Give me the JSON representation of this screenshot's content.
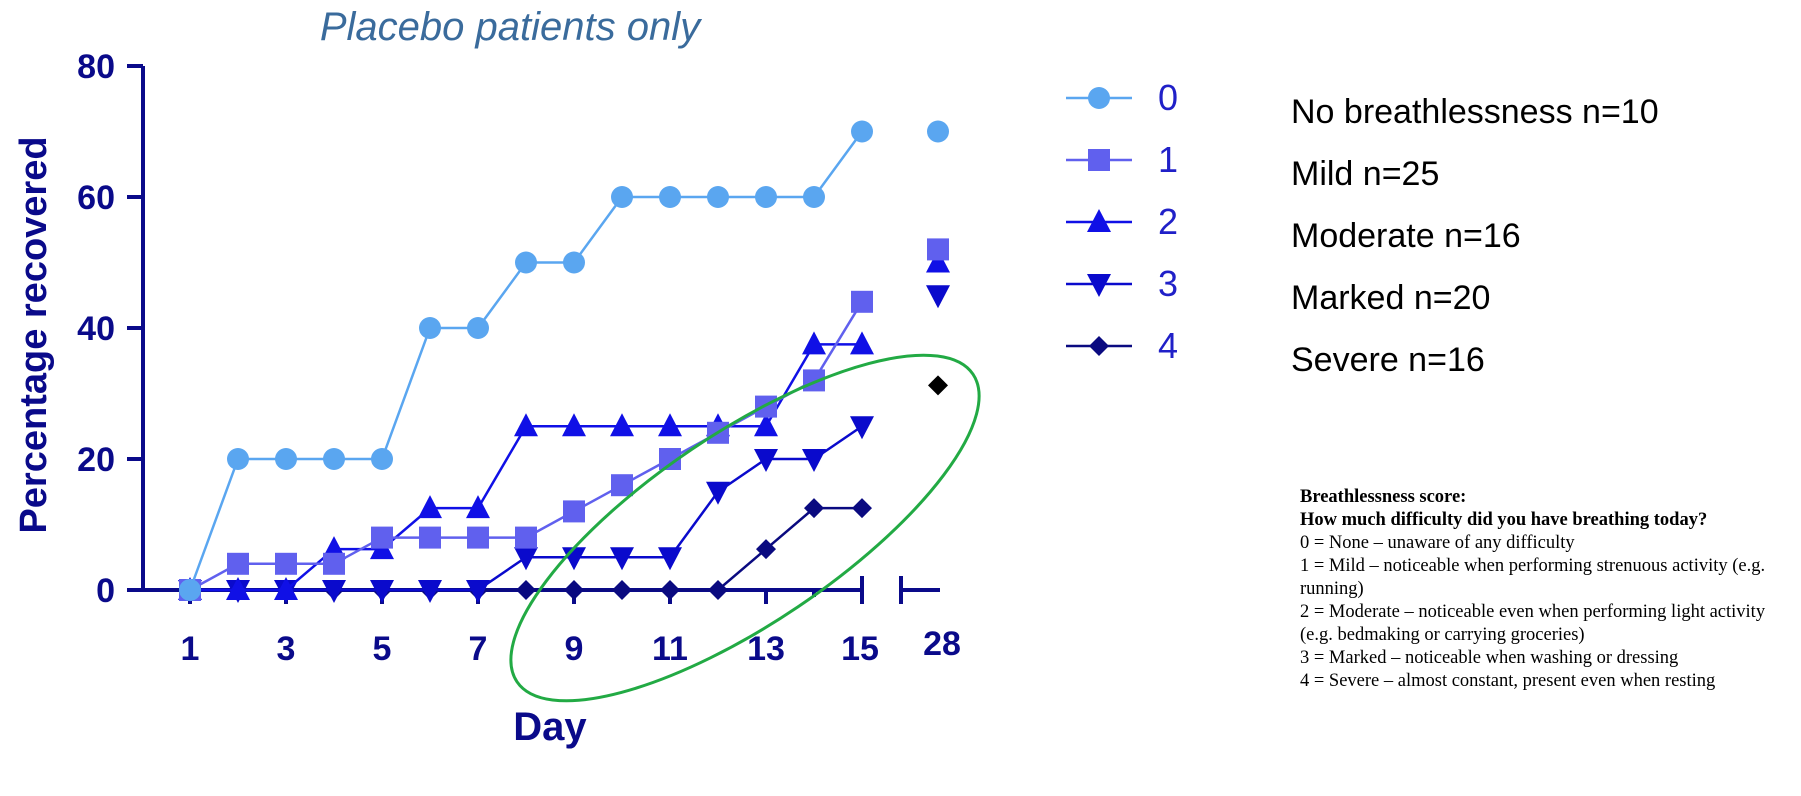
{
  "chart_data": {
    "type": "line",
    "title": "Placebo patients only",
    "xlabel": "Day",
    "ylabel": "Percentage recovered",
    "ylim": [
      0,
      80
    ],
    "yticks": [
      0,
      20,
      40,
      60,
      80
    ],
    "xticks": [
      1,
      3,
      5,
      7,
      9,
      11,
      13,
      15,
      28
    ],
    "x_axis_break": "between 15 and 28",
    "grid": false,
    "legend_position": "right",
    "series": [
      {
        "name": "0",
        "label": "No breathlessness n=10",
        "color": "#5aa6f0",
        "marker": "circle",
        "points": [
          [
            1,
            0
          ],
          [
            2,
            20
          ],
          [
            3,
            20
          ],
          [
            4,
            20
          ],
          [
            5,
            20
          ],
          [
            6,
            40
          ],
          [
            7,
            40
          ],
          [
            8,
            50
          ],
          [
            9,
            50
          ],
          [
            10,
            60
          ],
          [
            11,
            60
          ],
          [
            12,
            60
          ],
          [
            13,
            60
          ],
          [
            14,
            60
          ],
          [
            15,
            70
          ],
          [
            28,
            70
          ]
        ]
      },
      {
        "name": "1",
        "label": "Mild n=25",
        "color": "#6060ee",
        "marker": "square",
        "points": [
          [
            1,
            0
          ],
          [
            2,
            4
          ],
          [
            3,
            4
          ],
          [
            4,
            4
          ],
          [
            5,
            8
          ],
          [
            6,
            8
          ],
          [
            7,
            8
          ],
          [
            8,
            8
          ],
          [
            9,
            12
          ],
          [
            10,
            16
          ],
          [
            11,
            20
          ],
          [
            12,
            24
          ],
          [
            13,
            28
          ],
          [
            14,
            32
          ],
          [
            15,
            44
          ],
          [
            28,
            52
          ]
        ]
      },
      {
        "name": "2",
        "label": "Moderate n=16",
        "color": "#1010e6",
        "marker": "triangle-up",
        "points": [
          [
            1,
            0
          ],
          [
            2,
            0
          ],
          [
            3,
            0
          ],
          [
            4,
            6.25
          ],
          [
            5,
            6.25
          ],
          [
            6,
            12.5
          ],
          [
            7,
            12.5
          ],
          [
            8,
            25
          ],
          [
            9,
            25
          ],
          [
            10,
            25
          ],
          [
            11,
            25
          ],
          [
            12,
            25
          ],
          [
            13,
            25
          ],
          [
            14,
            37.5
          ],
          [
            15,
            37.5
          ],
          [
            28,
            50
          ]
        ]
      },
      {
        "name": "3",
        "label": "Marked n=20",
        "color": "#0a0acc",
        "marker": "triangle-down",
        "points": [
          [
            1,
            0
          ],
          [
            2,
            0
          ],
          [
            3,
            0
          ],
          [
            4,
            0
          ],
          [
            5,
            0
          ],
          [
            6,
            0
          ],
          [
            7,
            0
          ],
          [
            8,
            5
          ],
          [
            9,
            5
          ],
          [
            10,
            5
          ],
          [
            11,
            5
          ],
          [
            12,
            15
          ],
          [
            13,
            20
          ],
          [
            14,
            20
          ],
          [
            15,
            25
          ],
          [
            28,
            45
          ]
        ]
      },
      {
        "name": "4",
        "label": "Severe n=16",
        "color": "#0a0a80",
        "marker": "diamond",
        "points": [
          [
            1,
            0
          ],
          [
            2,
            0
          ],
          [
            3,
            0
          ],
          [
            4,
            0
          ],
          [
            5,
            0
          ],
          [
            6,
            0
          ],
          [
            7,
            0
          ],
          [
            8,
            0
          ],
          [
            9,
            0
          ],
          [
            10,
            0
          ],
          [
            11,
            0
          ],
          [
            12,
            0
          ],
          [
            13,
            6.25
          ],
          [
            14,
            12.5
          ],
          [
            15,
            12.5
          ],
          [
            28,
            31.25
          ]
        ]
      }
    ]
  },
  "note": {
    "heading": "Breathlessness score:",
    "question": "How much difficulty did you have breathing today?",
    "lines": [
      "0 = None – unaware of any difficulty",
      "1 = Mild – noticeable when performing strenuous activity (e.g. running)",
      "2 = Moderate – noticeable even when performing light activity (e.g. bedmaking or carrying groceries)",
      "3 = Marked – noticeable when washing or dressing",
      "4 = Severe – almost constant, present even when resting"
    ]
  },
  "colors": {
    "axis": "#0a0a8a",
    "highlight_ellipse": "#22aa44"
  }
}
